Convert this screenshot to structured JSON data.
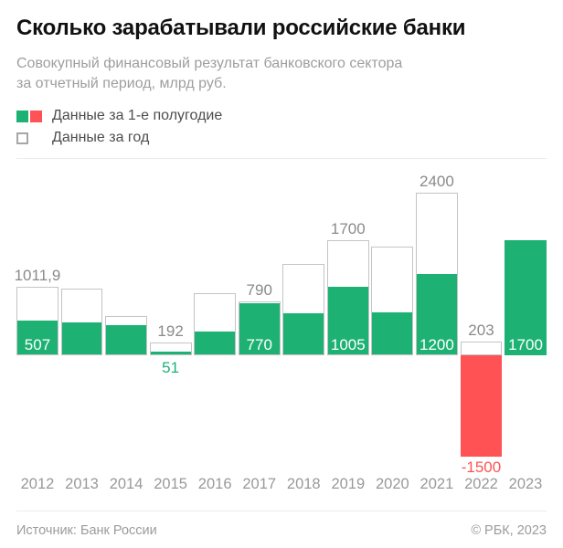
{
  "header": {
    "title": "Сколько зарабатывали российские банки",
    "subtitle_line1": "Совокупный финансовый результат банковского сектора",
    "subtitle_line2": "за отчетный период, млрд руб."
  },
  "legend": {
    "half_year": "Данные за 1-е полугодие",
    "full_year": "Данные за год"
  },
  "colors": {
    "positive": "#1db274",
    "negative": "#ff5254",
    "bar_border": "#c4c4c4",
    "value_label_gray": "#8a8a8a",
    "axis_label_gray": "#999999"
  },
  "chart_data": {
    "type": "bar",
    "unit": "млрд руб.",
    "categories": [
      "2012",
      "2013",
      "2014",
      "2015",
      "2016",
      "2017",
      "2018",
      "2019",
      "2020",
      "2021",
      "2022",
      "2023"
    ],
    "series": [
      {
        "name": "Данные за 1-е полугодие",
        "values": [
          507,
          490,
          450,
          51,
          355,
          770,
          625,
          1005,
          630,
          1200,
          -1500,
          1700
        ]
      },
      {
        "name": "Данные за год",
        "values": [
          1011.9,
          990,
          585,
          192,
          920,
          790,
          1350,
          1700,
          1600,
          2400,
          203,
          null
        ]
      }
    ],
    "shown_labels": {
      "half": [
        "507",
        null,
        null,
        "51",
        null,
        "770",
        null,
        "1005",
        null,
        "1200",
        "-1500",
        "1700"
      ],
      "full": [
        "1011,9",
        null,
        null,
        "192",
        null,
        "790",
        null,
        "1700",
        null,
        "2400",
        "203",
        null
      ]
    },
    "ylim": [
      -1500,
      2400
    ],
    "grid": false,
    "legend_position": "top-left"
  },
  "footer": {
    "source": "Источник: Банк России",
    "copyright": "© РБК, 2023"
  }
}
